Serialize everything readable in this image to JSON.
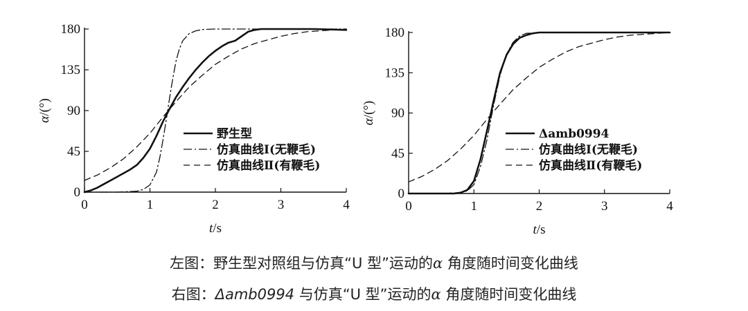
{
  "chart_data": [
    {
      "type": "line",
      "panel": "left",
      "xlabel_var": "t",
      "xlabel_unit": "/s",
      "ylabel_var": "α",
      "ylabel_unit": "/(°)",
      "xlim": [
        0,
        4
      ],
      "ylim": [
        0,
        180
      ],
      "xticks": [
        0,
        1,
        2,
        3,
        4
      ],
      "yticks": [
        0,
        45,
        90,
        135,
        180
      ],
      "legend_position": "center-right",
      "series": [
        {
          "name": "野生型",
          "style": "solid-thick",
          "x": [
            0,
            0.1,
            0.2,
            0.3,
            0.4,
            0.5,
            0.6,
            0.7,
            0.8,
            0.9,
            1.0,
            1.1,
            1.2,
            1.3,
            1.4,
            1.5,
            1.6,
            1.7,
            1.8,
            1.9,
            2.0,
            2.1,
            2.2,
            2.3,
            2.4,
            2.5,
            2.6,
            2.7,
            2.8,
            3.0,
            3.5,
            4.0
          ],
          "y": [
            0,
            2,
            5,
            9,
            13,
            17,
            21,
            25,
            30,
            38,
            48,
            62,
            78,
            92,
            105,
            116,
            126,
            135,
            143,
            150,
            156,
            161,
            165,
            167,
            172,
            177,
            179,
            180,
            180,
            180,
            180,
            179
          ]
        },
        {
          "name": "仿真曲线Ⅰ(无鞭毛)",
          "style": "dash-dot",
          "x": [
            0,
            0.5,
            0.8,
            0.9,
            1.0,
            1.1,
            1.15,
            1.2,
            1.25,
            1.3,
            1.35,
            1.4,
            1.45,
            1.5,
            1.6,
            1.7,
            1.8,
            2.0,
            2.5,
            3.0,
            3.5,
            4.0
          ],
          "y": [
            0,
            0,
            1,
            3,
            8,
            22,
            38,
            58,
            80,
            104,
            126,
            145,
            158,
            167,
            175,
            178,
            179.5,
            180,
            180,
            180,
            180,
            180
          ]
        },
        {
          "name": "仿真曲线Ⅱ(有鞭毛)",
          "style": "dashed",
          "x": [
            0,
            0.2,
            0.4,
            0.6,
            0.8,
            1.0,
            1.2,
            1.4,
            1.6,
            1.8,
            2.0,
            2.2,
            2.4,
            2.6,
            2.8,
            3.0,
            3.2,
            3.4,
            3.6,
            3.8,
            4.0
          ],
          "y": [
            13,
            19,
            27,
            37,
            50,
            65,
            83,
            100,
            116,
            129,
            141,
            150,
            158,
            164,
            168,
            172,
            175,
            177,
            178,
            179,
            180
          ]
        }
      ]
    },
    {
      "type": "line",
      "panel": "right",
      "xlabel_var": "t",
      "xlabel_unit": "/s",
      "ylabel_var": "α",
      "ylabel_unit": "/(°)",
      "xlim": [
        0,
        4
      ],
      "ylim": [
        0,
        180
      ],
      "xticks": [
        0,
        1,
        2,
        3,
        4
      ],
      "yticks": [
        0,
        45,
        90,
        135,
        180
      ],
      "legend_position": "center-right",
      "series": [
        {
          "name": "Δamb0994",
          "style": "solid-thick",
          "x": [
            0,
            0.5,
            0.7,
            0.8,
            0.9,
            1.0,
            1.1,
            1.2,
            1.3,
            1.4,
            1.5,
            1.6,
            1.7,
            1.8,
            1.9,
            2.0,
            2.5,
            3.0,
            3.5,
            4.0
          ],
          "y": [
            0,
            0,
            0,
            1,
            4,
            14,
            38,
            70,
            103,
            135,
            155,
            167,
            174,
            177,
            179,
            180,
            180,
            180,
            180,
            180
          ]
        },
        {
          "name": "仿真曲线Ⅰ(无鞭毛)",
          "style": "dash-dot",
          "x": [
            0,
            0.5,
            0.8,
            0.9,
            1.0,
            1.1,
            1.2,
            1.3,
            1.4,
            1.5,
            1.6,
            1.7,
            1.8,
            2.0,
            2.5,
            3.0,
            3.5,
            4.0
          ],
          "y": [
            0,
            0,
            1,
            3,
            10,
            30,
            60,
            98,
            132,
            156,
            169,
            176,
            179,
            180,
            180,
            180,
            180,
            180
          ]
        },
        {
          "name": "仿真曲线Ⅱ(有鞭毛)",
          "style": "dashed",
          "x": [
            0,
            0.2,
            0.4,
            0.6,
            0.8,
            1.0,
            1.2,
            1.4,
            1.6,
            1.8,
            2.0,
            2.2,
            2.4,
            2.6,
            2.8,
            3.0,
            3.2,
            3.4,
            3.6,
            3.8,
            4.0
          ],
          "y": [
            13,
            19,
            27,
            37,
            50,
            65,
            83,
            100,
            116,
            129,
            141,
            150,
            158,
            164,
            168,
            172,
            175,
            177,
            178,
            179,
            180
          ]
        }
      ]
    }
  ],
  "captions": {
    "line1_prefix": "左图：野生型对照组与仿真“U 型”运动的",
    "line1_alpha": "α",
    "line1_suffix": "角度随时间变化曲线",
    "line2_prefix": "右图：",
    "line2_strain": "Δamb0994",
    "line2_mid": "与仿真“U 型”运动的",
    "line2_alpha": "α",
    "line2_suffix": "角度随时间变化曲线"
  }
}
